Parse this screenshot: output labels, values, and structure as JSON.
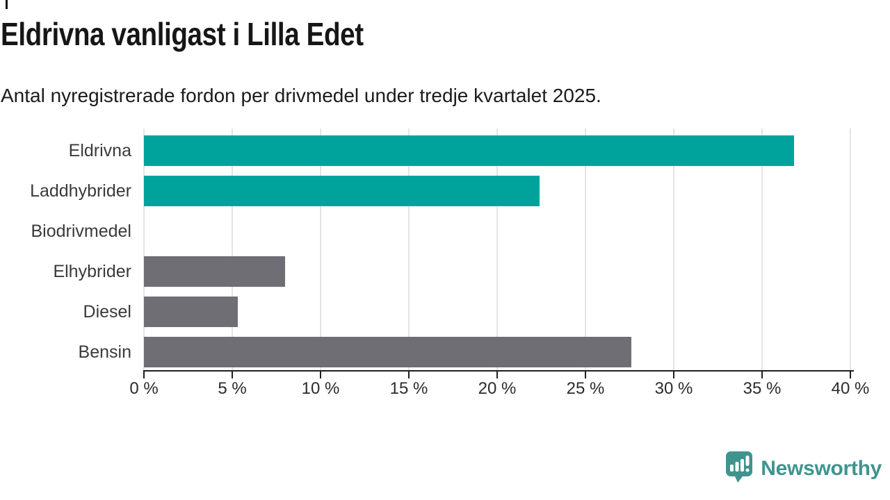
{
  "page": {
    "title": "Eldrivna vanligast i Lilla Edet",
    "subtitle": "Antal nyregistrerade fordon per drivmedel under tredje kvartalet 2025."
  },
  "chart_data": {
    "type": "bar",
    "orientation": "horizontal",
    "title": "Eldrivna vanligast i Lilla Edet",
    "xlabel": "",
    "ylabel": "",
    "unit": "%",
    "categories": [
      "Eldrivna",
      "Laddhybrider",
      "Biodrivmedel",
      "Elhybrider",
      "Diesel",
      "Bensin"
    ],
    "values": [
      36.8,
      22.4,
      0,
      8.0,
      5.3,
      27.6
    ],
    "bar_colors": [
      "#00A39B",
      "#00A39B",
      "#6E6E74",
      "#6E6E74",
      "#6E6E74",
      "#6E6E74"
    ],
    "xlim": [
      0,
      40
    ],
    "x_ticks": [
      0,
      5,
      10,
      15,
      20,
      25,
      30,
      35,
      40
    ],
    "x_tick_labels": [
      "0 %",
      "5 %",
      "10 %",
      "15 %",
      "20 %",
      "25 %",
      "30 %",
      "35 %",
      "40 %"
    ],
    "grid": true,
    "legend": "none"
  },
  "branding": {
    "logo_text": "Newsworthy",
    "logo_color": "#3F948E"
  },
  "colors": {
    "accent_teal": "#00A39B",
    "neutral_gray": "#6E6E74",
    "gridline": "#E4E4E4",
    "axis": "#1F1F1F"
  }
}
